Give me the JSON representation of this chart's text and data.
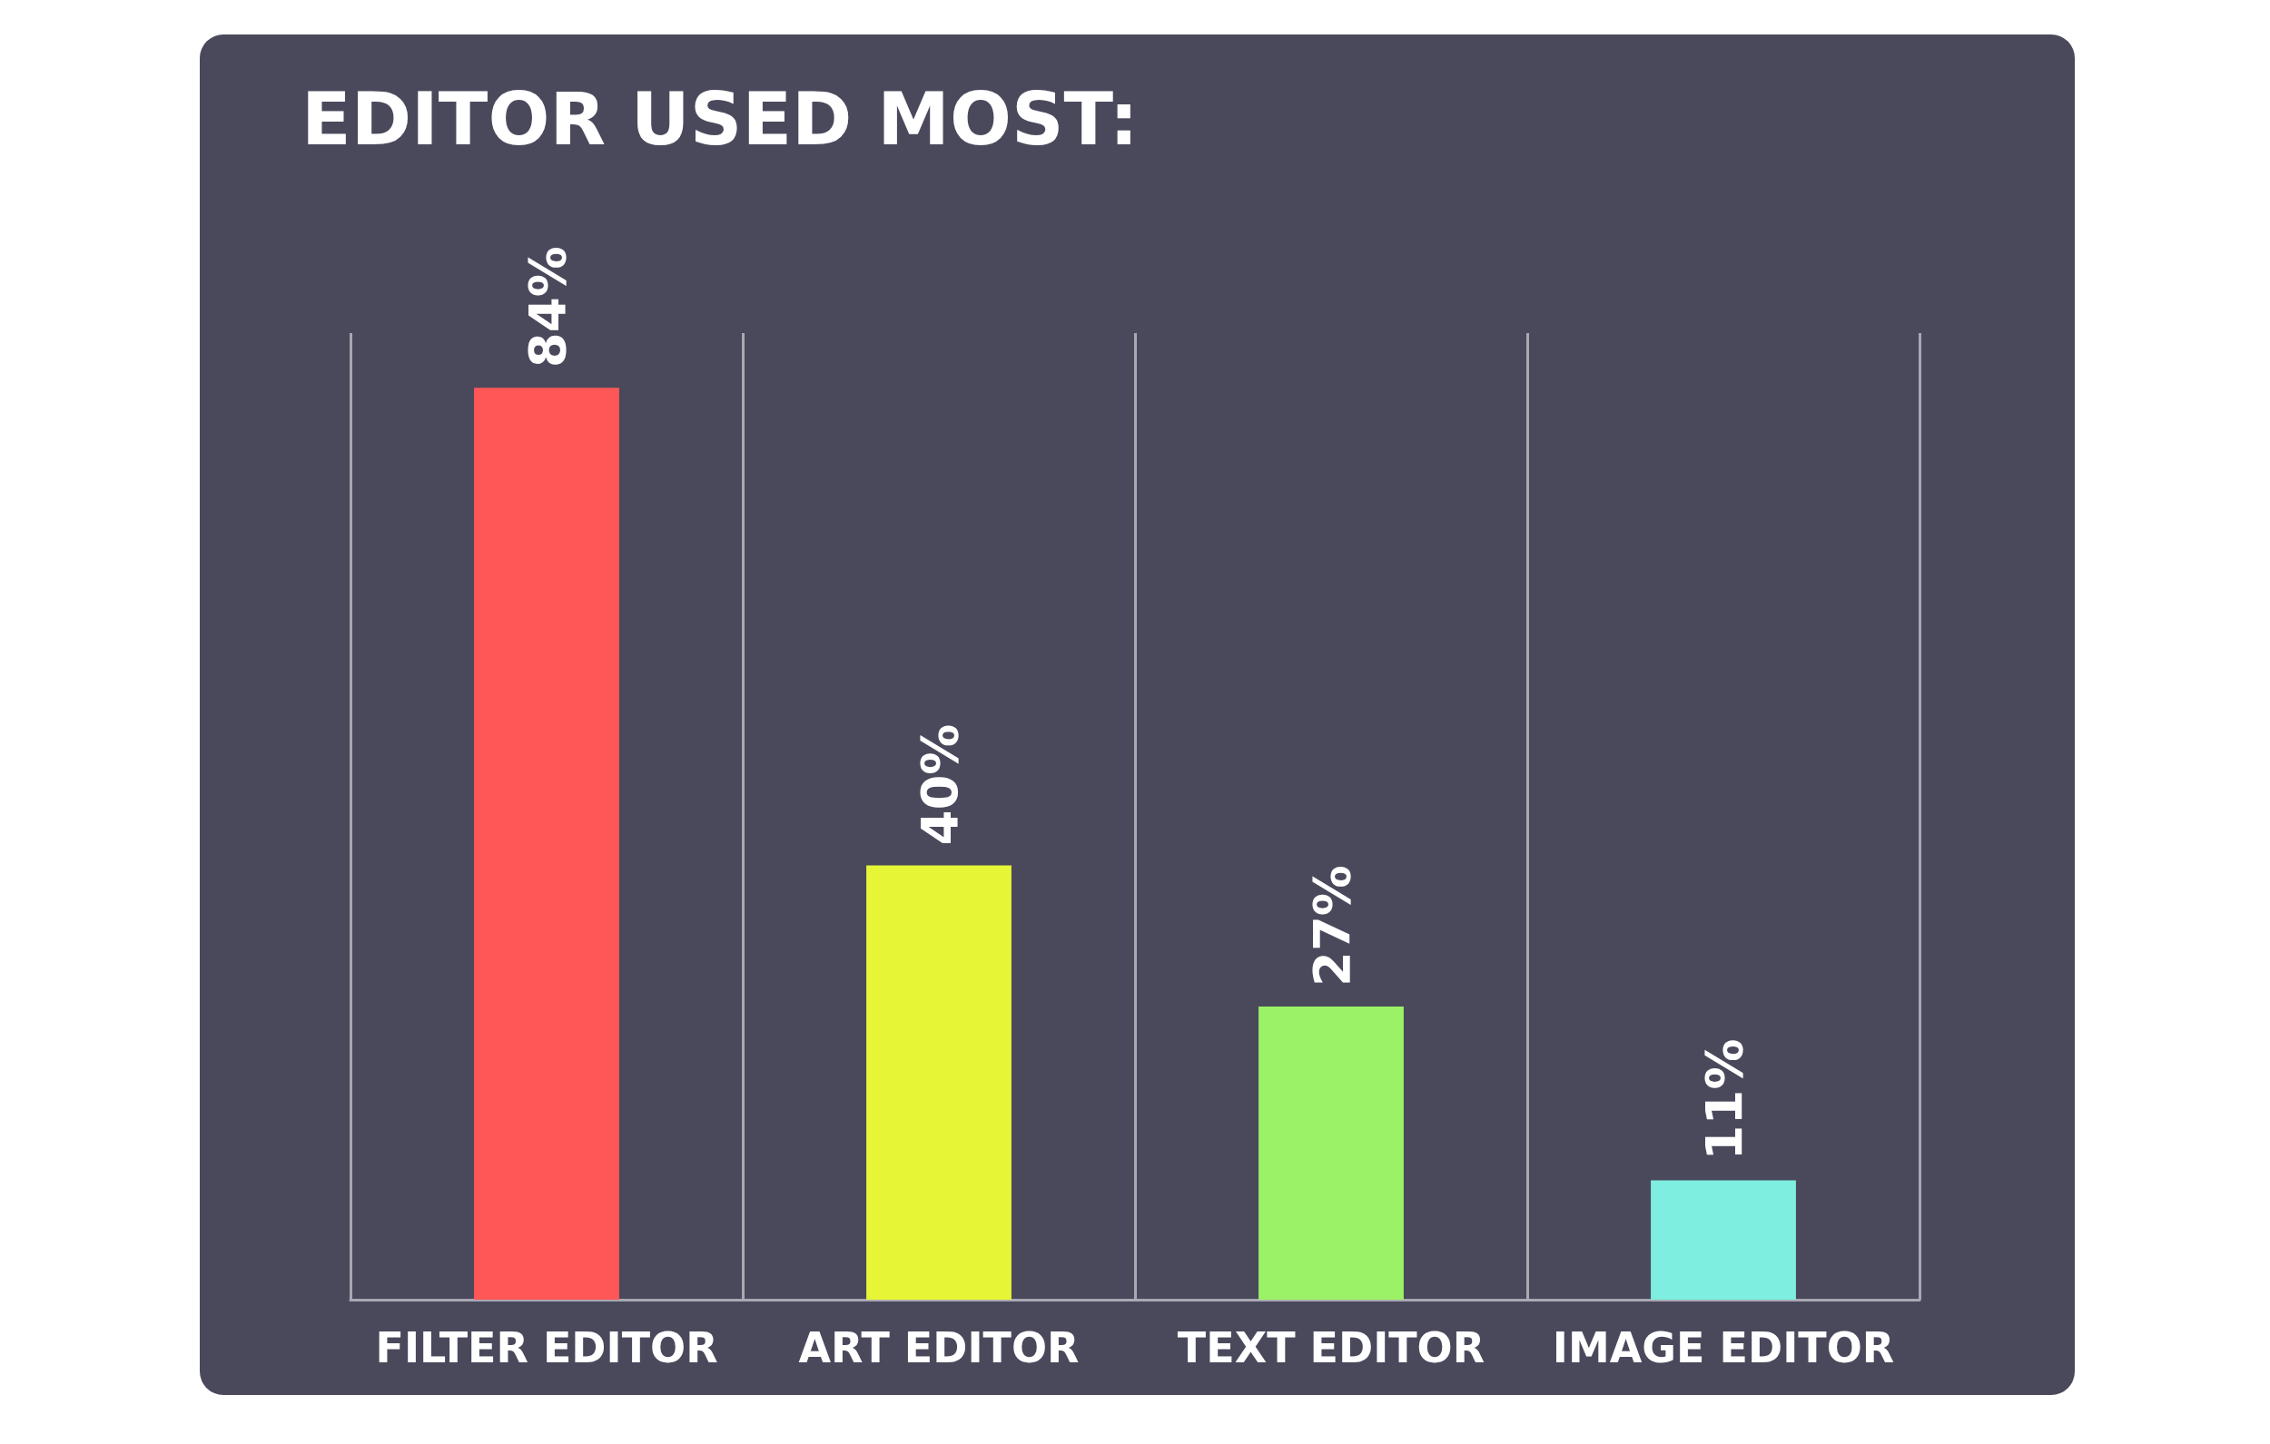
{
  "chart_data": {
    "type": "bar",
    "title": "EDITOR USED MOST:",
    "categories": [
      "FILTER EDITOR",
      "ART EDITOR",
      "TEXT EDITOR",
      "IMAGE EDITOR"
    ],
    "values": [
      84,
      40,
      27,
      11
    ],
    "colors": [
      "#ff5757",
      "#e6f535",
      "#9cf266",
      "#7eeee0"
    ],
    "value_labels": [
      "84%",
      "40%",
      "27%",
      "11%"
    ],
    "grid": "x",
    "tick_labels": "x"
  }
}
